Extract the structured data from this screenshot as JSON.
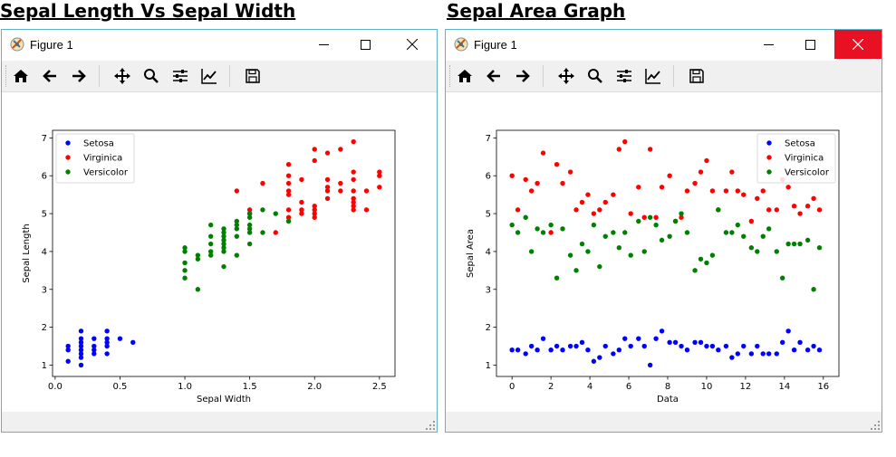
{
  "headings": {
    "left": "Sepal Length Vs Sepal Width",
    "right": "Sepal Area Graph"
  },
  "windows": [
    {
      "title": "Figure 1",
      "close_active": false
    },
    {
      "title": "Figure 1",
      "close_active": true
    }
  ],
  "toolbar_icons": [
    "home-icon",
    "back-arrow-icon",
    "forward-arrow-icon",
    "pan-icon",
    "zoom-icon",
    "configure-subplots-icon",
    "edit-axis-icon",
    "save-icon"
  ],
  "colors": {
    "setosa": "#0000ff",
    "virginica": "#ff0000",
    "versicolor": "#008000",
    "close_active": "#e81123",
    "window_border": "#5fb3c6"
  },
  "chart_data": [
    {
      "type": "scatter",
      "title": "",
      "xlabel": "Sepal Width",
      "ylabel": "Sepal Length",
      "xlim": [
        -0.02,
        2.62
      ],
      "ylim": [
        0.7,
        7.2
      ],
      "xticks": [
        "0.0",
        "0.5",
        "1.0",
        "1.5",
        "2.0",
        "2.5"
      ],
      "yticks": [
        "1",
        "2",
        "3",
        "4",
        "5",
        "6",
        "7"
      ],
      "legend_position": "top-left",
      "series": [
        {
          "name": "Setosa",
          "color": "#0000ff",
          "points": [
            [
              0.1,
              1.4
            ],
            [
              0.1,
              1.5
            ],
            [
              0.1,
              1.1
            ],
            [
              0.2,
              1.0
            ],
            [
              0.2,
              1.2
            ],
            [
              0.2,
              1.3
            ],
            [
              0.2,
              1.4
            ],
            [
              0.2,
              1.5
            ],
            [
              0.2,
              1.6
            ],
            [
              0.2,
              1.7
            ],
            [
              0.2,
              1.9
            ],
            [
              0.3,
              1.3
            ],
            [
              0.3,
              1.4
            ],
            [
              0.3,
              1.5
            ],
            [
              0.3,
              1.7
            ],
            [
              0.4,
              1.3
            ],
            [
              0.4,
              1.5
            ],
            [
              0.4,
              1.6
            ],
            [
              0.4,
              1.7
            ],
            [
              0.4,
              1.9
            ],
            [
              0.5,
              1.7
            ],
            [
              0.6,
              1.6
            ]
          ]
        },
        {
          "name": "Virginica",
          "color": "#ff0000",
          "points": [
            [
              1.4,
              5.6
            ],
            [
              1.5,
              5.1
            ],
            [
              1.5,
              5.0
            ],
            [
              1.6,
              5.8
            ],
            [
              1.7,
              4.5
            ],
            [
              1.8,
              4.8
            ],
            [
              1.8,
              4.9
            ],
            [
              1.8,
              5.1
            ],
            [
              1.8,
              5.5
            ],
            [
              1.8,
              5.6
            ],
            [
              1.8,
              5.8
            ],
            [
              1.8,
              6.0
            ],
            [
              1.8,
              6.3
            ],
            [
              1.9,
              5.0
            ],
            [
              1.9,
              5.1
            ],
            [
              1.9,
              5.3
            ],
            [
              1.9,
              5.9
            ],
            [
              2.0,
              4.9
            ],
            [
              2.0,
              5.0
            ],
            [
              2.0,
              5.1
            ],
            [
              2.0,
              5.2
            ],
            [
              2.0,
              6.4
            ],
            [
              2.0,
              6.7
            ],
            [
              2.1,
              5.4
            ],
            [
              2.1,
              5.6
            ],
            [
              2.1,
              5.7
            ],
            [
              2.1,
              5.9
            ],
            [
              2.1,
              6.6
            ],
            [
              2.2,
              5.6
            ],
            [
              2.2,
              5.8
            ],
            [
              2.2,
              6.7
            ],
            [
              2.3,
              5.1
            ],
            [
              2.3,
              5.2
            ],
            [
              2.3,
              5.3
            ],
            [
              2.3,
              5.4
            ],
            [
              2.3,
              5.6
            ],
            [
              2.3,
              5.9
            ],
            [
              2.3,
              6.1
            ],
            [
              2.3,
              6.9
            ],
            [
              2.4,
              5.1
            ],
            [
              2.4,
              5.6
            ],
            [
              2.5,
              5.7
            ],
            [
              2.5,
              6.0
            ],
            [
              2.5,
              6.1
            ]
          ]
        },
        {
          "name": "Versicolor",
          "color": "#008000",
          "points": [
            [
              1.0,
              3.3
            ],
            [
              1.0,
              3.5
            ],
            [
              1.0,
              3.7
            ],
            [
              1.0,
              4.0
            ],
            [
              1.0,
              4.1
            ],
            [
              1.1,
              3.0
            ],
            [
              1.1,
              3.8
            ],
            [
              1.1,
              3.9
            ],
            [
              1.2,
              3.9
            ],
            [
              1.2,
              4.0
            ],
            [
              1.2,
              4.2
            ],
            [
              1.2,
              4.4
            ],
            [
              1.2,
              4.7
            ],
            [
              1.3,
              3.6
            ],
            [
              1.3,
              4.0
            ],
            [
              1.3,
              4.1
            ],
            [
              1.3,
              4.2
            ],
            [
              1.3,
              4.3
            ],
            [
              1.3,
              4.4
            ],
            [
              1.3,
              4.5
            ],
            [
              1.3,
              4.6
            ],
            [
              1.4,
              3.9
            ],
            [
              1.4,
              4.4
            ],
            [
              1.4,
              4.6
            ],
            [
              1.4,
              4.7
            ],
            [
              1.4,
              4.8
            ],
            [
              1.5,
              4.2
            ],
            [
              1.5,
              4.5
            ],
            [
              1.5,
              4.6
            ],
            [
              1.5,
              4.7
            ],
            [
              1.5,
              4.9
            ],
            [
              1.5,
              5.0
            ],
            [
              1.6,
              4.5
            ],
            [
              1.6,
              5.1
            ],
            [
              1.7,
              5.0
            ],
            [
              1.8,
              4.8
            ]
          ]
        }
      ]
    },
    {
      "type": "scatter",
      "title": "",
      "xlabel": "Data",
      "ylabel": "Sepal Area",
      "xlim": [
        -0.8,
        16.8
      ],
      "ylim": [
        0.7,
        7.2
      ],
      "xticks": [
        "0",
        "2",
        "4",
        "6",
        "8",
        "10",
        "12",
        "14",
        "16"
      ],
      "yticks": [
        "1",
        "2",
        "3",
        "4",
        "5",
        "6",
        "7"
      ],
      "legend_position": "top-right",
      "series": [
        {
          "name": "Setosa",
          "color": "#0000ff",
          "points": [
            [
              0.0,
              1.4
            ],
            [
              0.3,
              1.4
            ],
            [
              0.7,
              1.3
            ],
            [
              1.0,
              1.5
            ],
            [
              1.3,
              1.4
            ],
            [
              1.6,
              1.7
            ],
            [
              2.0,
              1.4
            ],
            [
              2.3,
              1.5
            ],
            [
              2.6,
              1.4
            ],
            [
              3.0,
              1.5
            ],
            [
              3.3,
              1.5
            ],
            [
              3.6,
              1.6
            ],
            [
              3.9,
              1.4
            ],
            [
              4.2,
              1.1
            ],
            [
              4.5,
              1.2
            ],
            [
              4.8,
              1.5
            ],
            [
              5.2,
              1.3
            ],
            [
              5.5,
              1.4
            ],
            [
              5.8,
              1.7
            ],
            [
              6.1,
              1.5
            ],
            [
              6.5,
              1.7
            ],
            [
              6.8,
              1.5
            ],
            [
              7.1,
              1.0
            ],
            [
              7.4,
              1.7
            ],
            [
              7.7,
              1.9
            ],
            [
              8.1,
              1.6
            ],
            [
              8.4,
              1.6
            ],
            [
              8.7,
              1.5
            ],
            [
              9.0,
              1.4
            ],
            [
              9.4,
              1.6
            ],
            [
              9.7,
              1.6
            ],
            [
              10.0,
              1.5
            ],
            [
              10.3,
              1.5
            ],
            [
              10.6,
              1.4
            ],
            [
              11.0,
              1.5
            ],
            [
              11.3,
              1.2
            ],
            [
              11.6,
              1.3
            ],
            [
              11.9,
              1.5
            ],
            [
              12.3,
              1.3
            ],
            [
              12.6,
              1.5
            ],
            [
              12.9,
              1.3
            ],
            [
              13.2,
              1.3
            ],
            [
              13.6,
              1.3
            ],
            [
              13.9,
              1.6
            ],
            [
              14.2,
              1.9
            ],
            [
              14.5,
              1.4
            ],
            [
              14.8,
              1.6
            ],
            [
              15.2,
              1.4
            ],
            [
              15.5,
              1.5
            ],
            [
              15.8,
              1.4
            ]
          ]
        },
        {
          "name": "Virginica",
          "color": "#ff0000",
          "points": [
            [
              0.0,
              6.0
            ],
            [
              0.3,
              5.1
            ],
            [
              0.7,
              5.9
            ],
            [
              1.0,
              5.6
            ],
            [
              1.3,
              5.8
            ],
            [
              1.6,
              6.6
            ],
            [
              2.0,
              4.5
            ],
            [
              2.3,
              6.3
            ],
            [
              2.6,
              5.8
            ],
            [
              3.0,
              6.1
            ],
            [
              3.3,
              5.1
            ],
            [
              3.6,
              5.3
            ],
            [
              3.9,
              5.5
            ],
            [
              4.2,
              5.0
            ],
            [
              4.5,
              5.1
            ],
            [
              4.8,
              5.3
            ],
            [
              5.2,
              5.5
            ],
            [
              5.5,
              6.7
            ],
            [
              5.8,
              6.9
            ],
            [
              6.1,
              5.0
            ],
            [
              6.5,
              5.7
            ],
            [
              6.8,
              4.9
            ],
            [
              7.1,
              6.7
            ],
            [
              7.4,
              4.9
            ],
            [
              7.7,
              5.7
            ],
            [
              8.1,
              6.0
            ],
            [
              8.4,
              4.8
            ],
            [
              8.7,
              4.9
            ],
            [
              9.0,
              5.6
            ],
            [
              9.4,
              5.8
            ],
            [
              9.7,
              6.1
            ],
            [
              10.0,
              6.4
            ],
            [
              10.3,
              5.6
            ],
            [
              10.6,
              5.1
            ],
            [
              11.0,
              5.6
            ],
            [
              11.3,
              6.1
            ],
            [
              11.6,
              5.6
            ],
            [
              11.9,
              5.5
            ],
            [
              12.3,
              4.8
            ],
            [
              12.6,
              5.4
            ],
            [
              12.9,
              5.6
            ],
            [
              13.2,
              5.1
            ],
            [
              13.6,
              5.1
            ],
            [
              13.9,
              5.9
            ],
            [
              14.2,
              5.7
            ],
            [
              14.5,
              5.2
            ],
            [
              14.8,
              5.0
            ],
            [
              15.2,
              5.2
            ],
            [
              15.5,
              5.4
            ],
            [
              15.8,
              5.1
            ]
          ]
        },
        {
          "name": "Versicolor",
          "color": "#008000",
          "points": [
            [
              0.0,
              4.7
            ],
            [
              0.3,
              4.5
            ],
            [
              0.7,
              4.9
            ],
            [
              1.0,
              4.0
            ],
            [
              1.3,
              4.6
            ],
            [
              1.6,
              4.5
            ],
            [
              2.0,
              4.7
            ],
            [
              2.3,
              3.3
            ],
            [
              2.6,
              4.6
            ],
            [
              3.0,
              3.9
            ],
            [
              3.3,
              3.5
            ],
            [
              3.6,
              4.2
            ],
            [
              3.9,
              4.0
            ],
            [
              4.2,
              4.7
            ],
            [
              4.5,
              3.6
            ],
            [
              4.8,
              4.4
            ],
            [
              5.2,
              4.5
            ],
            [
              5.5,
              4.1
            ],
            [
              5.8,
              4.5
            ],
            [
              6.1,
              3.9
            ],
            [
              6.5,
              4.8
            ],
            [
              6.8,
              4.0
            ],
            [
              7.1,
              4.9
            ],
            [
              7.4,
              4.7
            ],
            [
              7.7,
              4.3
            ],
            [
              8.1,
              4.4
            ],
            [
              8.4,
              4.8
            ],
            [
              8.7,
              5.0
            ],
            [
              9.0,
              4.5
            ],
            [
              9.4,
              3.5
            ],
            [
              9.7,
              3.8
            ],
            [
              10.0,
              3.7
            ],
            [
              10.3,
              3.9
            ],
            [
              10.6,
              5.1
            ],
            [
              11.0,
              4.5
            ],
            [
              11.3,
              4.5
            ],
            [
              11.6,
              4.7
            ],
            [
              11.9,
              4.4
            ],
            [
              12.3,
              4.1
            ],
            [
              12.6,
              4.0
            ],
            [
              12.9,
              4.4
            ],
            [
              13.2,
              4.6
            ],
            [
              13.6,
              4.0
            ],
            [
              13.9,
              3.3
            ],
            [
              14.2,
              4.2
            ],
            [
              14.5,
              4.2
            ],
            [
              14.8,
              4.2
            ],
            [
              15.2,
              4.3
            ],
            [
              15.5,
              3.0
            ],
            [
              15.8,
              4.1
            ]
          ]
        }
      ]
    }
  ]
}
